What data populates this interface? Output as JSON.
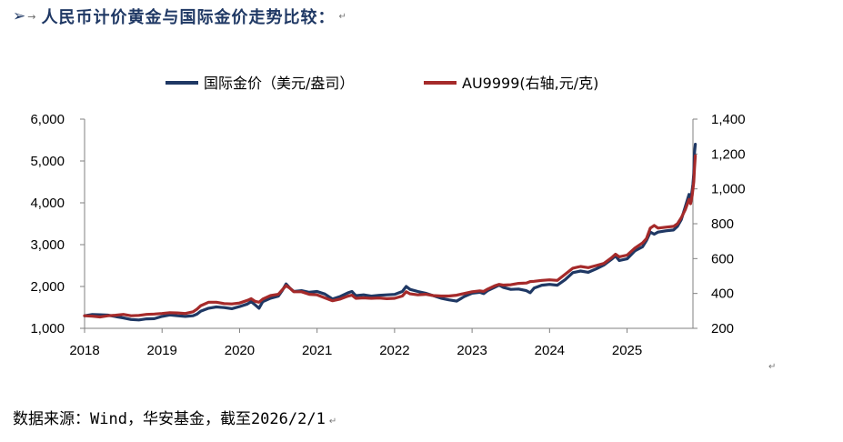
{
  "heading": {
    "bullet": "➢",
    "arrow": "→",
    "text": "人民币计价黄金与国际金价走势比较：",
    "mark": "↵"
  },
  "source_note": {
    "text": "数据来源：Wind，华安基金，截至2026/2/1",
    "mark": "↵"
  },
  "trailing_mark": "↵",
  "chart_data": {
    "type": "line",
    "legend_position": "top",
    "grid": false,
    "x_ticks": [
      "2018",
      "2019",
      "2020",
      "2021",
      "2022",
      "2023",
      "2024",
      "2025"
    ],
    "x_range": [
      2018.0,
      2025.85
    ],
    "y_left": {
      "range": [
        1000,
        6000
      ],
      "ticks": [
        "1,000",
        "2,000",
        "3,000",
        "4,000",
        "5,000",
        "6,000"
      ]
    },
    "y_right": {
      "range": [
        200,
        1400
      ],
      "ticks": [
        "200",
        "400",
        "600",
        "800",
        "1,000",
        "1,200",
        "1,400"
      ]
    },
    "series": [
      {
        "name": "国际金价（美元/盎司）",
        "axis": "left",
        "color": "#1f3864",
        "points": [
          [
            2018.0,
            1300
          ],
          [
            2018.1,
            1330
          ],
          [
            2018.2,
            1325
          ],
          [
            2018.3,
            1315
          ],
          [
            2018.4,
            1280
          ],
          [
            2018.5,
            1250
          ],
          [
            2018.6,
            1210
          ],
          [
            2018.7,
            1200
          ],
          [
            2018.8,
            1225
          ],
          [
            2018.9,
            1230
          ],
          [
            2019.0,
            1285
          ],
          [
            2019.1,
            1320
          ],
          [
            2019.2,
            1300
          ],
          [
            2019.3,
            1285
          ],
          [
            2019.4,
            1300
          ],
          [
            2019.45,
            1340
          ],
          [
            2019.5,
            1410
          ],
          [
            2019.6,
            1480
          ],
          [
            2019.7,
            1510
          ],
          [
            2019.8,
            1495
          ],
          [
            2019.9,
            1470
          ],
          [
            2020.0,
            1520
          ],
          [
            2020.1,
            1580
          ],
          [
            2020.15,
            1640
          ],
          [
            2020.2,
            1560
          ],
          [
            2020.25,
            1480
          ],
          [
            2020.3,
            1640
          ],
          [
            2020.4,
            1720
          ],
          [
            2020.5,
            1770
          ],
          [
            2020.55,
            1900
          ],
          [
            2020.6,
            2060
          ],
          [
            2020.65,
            1960
          ],
          [
            2020.7,
            1880
          ],
          [
            2020.8,
            1900
          ],
          [
            2020.9,
            1860
          ],
          [
            2021.0,
            1880
          ],
          [
            2021.1,
            1820
          ],
          [
            2021.2,
            1700
          ],
          [
            2021.3,
            1760
          ],
          [
            2021.4,
            1850
          ],
          [
            2021.45,
            1880
          ],
          [
            2021.5,
            1780
          ],
          [
            2021.6,
            1800
          ],
          [
            2021.7,
            1770
          ],
          [
            2021.8,
            1790
          ],
          [
            2021.9,
            1800
          ],
          [
            2022.0,
            1810
          ],
          [
            2022.1,
            1880
          ],
          [
            2022.15,
            2000
          ],
          [
            2022.2,
            1930
          ],
          [
            2022.3,
            1880
          ],
          [
            2022.4,
            1840
          ],
          [
            2022.5,
            1780
          ],
          [
            2022.6,
            1720
          ],
          [
            2022.7,
            1680
          ],
          [
            2022.8,
            1650
          ],
          [
            2022.9,
            1760
          ],
          [
            2023.0,
            1840
          ],
          [
            2023.1,
            1860
          ],
          [
            2023.15,
            1830
          ],
          [
            2023.2,
            1900
          ],
          [
            2023.3,
            1990
          ],
          [
            2023.35,
            2030
          ],
          [
            2023.4,
            1980
          ],
          [
            2023.5,
            1930
          ],
          [
            2023.6,
            1940
          ],
          [
            2023.7,
            1900
          ],
          [
            2023.75,
            1850
          ],
          [
            2023.8,
            1960
          ],
          [
            2023.9,
            2030
          ],
          [
            2024.0,
            2050
          ],
          [
            2024.1,
            2030
          ],
          [
            2024.2,
            2160
          ],
          [
            2024.3,
            2330
          ],
          [
            2024.4,
            2370
          ],
          [
            2024.5,
            2340
          ],
          [
            2024.6,
            2420
          ],
          [
            2024.7,
            2510
          ],
          [
            2024.8,
            2650
          ],
          [
            2024.85,
            2730
          ],
          [
            2024.9,
            2620
          ],
          [
            2025.0,
            2660
          ],
          [
            2025.1,
            2850
          ],
          [
            2025.2,
            2950
          ],
          [
            2025.25,
            3100
          ],
          [
            2025.3,
            3300
          ],
          [
            2025.35,
            3250
          ],
          [
            2025.4,
            3300
          ],
          [
            2025.5,
            3330
          ],
          [
            2025.6,
            3350
          ],
          [
            2025.65,
            3440
          ],
          [
            2025.7,
            3600
          ],
          [
            2025.75,
            3900
          ],
          [
            2025.8,
            4200
          ],
          [
            2025.82,
            4050
          ],
          [
            2025.84,
            4300
          ],
          [
            2025.85,
            4450
          ],
          [
            2025.86,
            4700
          ],
          [
            2025.87,
            5200
          ],
          [
            2025.88,
            5400
          ]
        ]
      },
      {
        "name": "AU9999(右轴,元/克)",
        "axis": "right",
        "color": "#a52a2a",
        "points": [
          [
            2018.0,
            272
          ],
          [
            2018.1,
            270
          ],
          [
            2018.2,
            265
          ],
          [
            2018.3,
            272
          ],
          [
            2018.4,
            275
          ],
          [
            2018.5,
            280
          ],
          [
            2018.6,
            272
          ],
          [
            2018.7,
            274
          ],
          [
            2018.8,
            280
          ],
          [
            2018.9,
            282
          ],
          [
            2019.0,
            285
          ],
          [
            2019.1,
            290
          ],
          [
            2019.2,
            288
          ],
          [
            2019.3,
            285
          ],
          [
            2019.4,
            295
          ],
          [
            2019.45,
            310
          ],
          [
            2019.5,
            330
          ],
          [
            2019.6,
            350
          ],
          [
            2019.7,
            350
          ],
          [
            2019.8,
            342
          ],
          [
            2019.9,
            340
          ],
          [
            2020.0,
            345
          ],
          [
            2020.1,
            360
          ],
          [
            2020.15,
            370
          ],
          [
            2020.2,
            355
          ],
          [
            2020.25,
            350
          ],
          [
            2020.3,
            368
          ],
          [
            2020.4,
            388
          ],
          [
            2020.5,
            395
          ],
          [
            2020.55,
            420
          ],
          [
            2020.6,
            445
          ],
          [
            2020.65,
            430
          ],
          [
            2020.7,
            410
          ],
          [
            2020.8,
            410
          ],
          [
            2020.9,
            395
          ],
          [
            2021.0,
            392
          ],
          [
            2021.1,
            375
          ],
          [
            2021.2,
            358
          ],
          [
            2021.3,
            368
          ],
          [
            2021.4,
            385
          ],
          [
            2021.45,
            390
          ],
          [
            2021.5,
            372
          ],
          [
            2021.6,
            375
          ],
          [
            2021.7,
            372
          ],
          [
            2021.8,
            374
          ],
          [
            2021.9,
            370
          ],
          [
            2022.0,
            372
          ],
          [
            2022.1,
            385
          ],
          [
            2022.15,
            410
          ],
          [
            2022.2,
            398
          ],
          [
            2022.3,
            392
          ],
          [
            2022.4,
            395
          ],
          [
            2022.5,
            388
          ],
          [
            2022.6,
            385
          ],
          [
            2022.7,
            385
          ],
          [
            2022.8,
            390
          ],
          [
            2022.9,
            400
          ],
          [
            2023.0,
            410
          ],
          [
            2023.1,
            415
          ],
          [
            2023.15,
            412
          ],
          [
            2023.2,
            425
          ],
          [
            2023.3,
            445
          ],
          [
            2023.35,
            452
          ],
          [
            2023.4,
            448
          ],
          [
            2023.5,
            450
          ],
          [
            2023.6,
            458
          ],
          [
            2023.7,
            460
          ],
          [
            2023.75,
            468
          ],
          [
            2023.8,
            470
          ],
          [
            2023.9,
            475
          ],
          [
            2024.0,
            478
          ],
          [
            2024.1,
            475
          ],
          [
            2024.2,
            510
          ],
          [
            2024.3,
            545
          ],
          [
            2024.4,
            555
          ],
          [
            2024.5,
            548
          ],
          [
            2024.6,
            560
          ],
          [
            2024.7,
            572
          ],
          [
            2024.8,
            605
          ],
          [
            2024.85,
            625
          ],
          [
            2024.9,
            610
          ],
          [
            2025.0,
            620
          ],
          [
            2025.1,
            660
          ],
          [
            2025.2,
            690
          ],
          [
            2025.25,
            715
          ],
          [
            2025.3,
            775
          ],
          [
            2025.35,
            790
          ],
          [
            2025.4,
            775
          ],
          [
            2025.5,
            780
          ],
          [
            2025.6,
            785
          ],
          [
            2025.65,
            800
          ],
          [
            2025.7,
            835
          ],
          [
            2025.75,
            880
          ],
          [
            2025.8,
            940
          ],
          [
            2025.82,
            915
          ],
          [
            2025.84,
            960
          ],
          [
            2025.85,
            1000
          ],
          [
            2025.86,
            1040
          ],
          [
            2025.87,
            1120
          ],
          [
            2025.88,
            1190
          ]
        ]
      }
    ]
  }
}
